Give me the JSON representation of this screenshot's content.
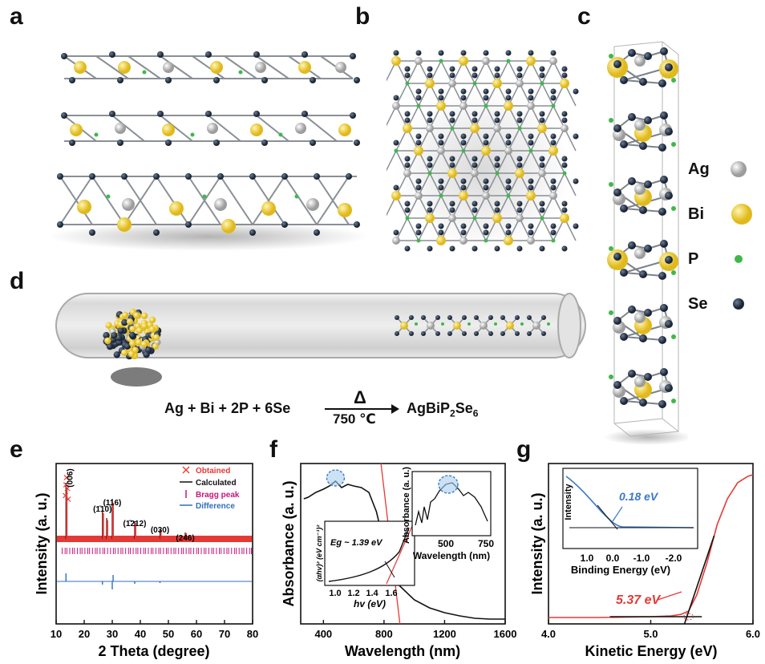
{
  "panels": {
    "a": "a",
    "b": "b",
    "c": "c",
    "d": "d",
    "e": "e",
    "f": "f",
    "g": "g"
  },
  "colors": {
    "ag": "#c9c9c9",
    "bi": "#f2d53c",
    "p": "#3fb84a",
    "se": "#263447",
    "obtained": "#e53935",
    "calculated": "#111111",
    "bragg": "#c2187a",
    "difference": "#2f6fbf",
    "red_line": "#e53935",
    "blue_accent": "#3a78c9"
  },
  "legend": {
    "items": [
      {
        "label": "Ag"
      },
      {
        "label": "Bi"
      },
      {
        "label": "P"
      },
      {
        "label": "Se"
      }
    ]
  },
  "reaction": {
    "lhs": "Ag + Bi + 2P + 6Se",
    "delta": "Δ",
    "temperature": "750 ℃",
    "product_main": "AgBiP",
    "product_sub1": "2",
    "product_mid": "Se",
    "product_sub2": "6"
  },
  "chart_data": [
    {
      "panel": "e",
      "type": "line",
      "xlabel": "2 Theta (degree)",
      "ylabel": "Intensity (a. u.)",
      "xlim": [
        10,
        80
      ],
      "xticks": [
        10,
        20,
        30,
        40,
        50,
        60,
        70,
        80
      ],
      "legend_position": "top-right",
      "series": [
        {
          "name": "Obtained",
          "style": "cross",
          "x": [
            13.3,
            13.5,
            13.7,
            14.0,
            14.3
          ],
          "y": [
            0.6,
            0.75,
            0.85,
            0.7,
            0.55
          ]
        },
        {
          "name": "Calculated",
          "style": "line"
        },
        {
          "name": "Bragg peak",
          "style": "ticks"
        },
        {
          "name": "Difference",
          "style": "line"
        }
      ],
      "peak_labels": [
        {
          "text": "(006)",
          "x": 13.5
        },
        {
          "text": "(1̄10)",
          "x": 26.5
        },
        {
          "text": "(116)",
          "x": 30.0
        },
        {
          "text": "(1̄212)",
          "x": 38.0
        },
        {
          "text": "(030)",
          "x": 47.0
        },
        {
          "text": "(246)",
          "x": 56.0
        }
      ]
    },
    {
      "panel": "f",
      "type": "line",
      "xlabel": "Wavelength (nm)",
      "ylabel": "Absorbance (a. u.)",
      "xlim": [
        250,
        1600
      ],
      "xticks": [
        400,
        800,
        1200,
        1600
      ],
      "series": [
        {
          "name": "",
          "x": [
            270,
            300,
            350,
            400,
            440,
            480,
            520,
            560,
            600,
            650,
            700,
            750,
            800,
            850,
            900,
            1000,
            1100,
            1200,
            1300,
            1400,
            1500,
            1600
          ],
          "y": [
            0.78,
            0.79,
            0.82,
            0.84,
            0.86,
            0.89,
            0.85,
            0.87,
            0.86,
            0.85,
            0.82,
            0.7,
            0.5,
            0.33,
            0.24,
            0.15,
            0.1,
            0.07,
            0.05,
            0.035,
            0.03,
            0.03
          ]
        }
      ],
      "inset_tauc": {
        "xlabel": "hv (eV)",
        "ylabel": "(αhv)² (eV cm⁻¹)²",
        "xticks": [
          "1.0",
          "1.2",
          "1.4",
          "1.6"
        ],
        "annotation": "Eg ~ 1.39 eV"
      },
      "inset_zoom": {
        "xlabel": "Wavelength (nm)",
        "ylabel": "Absorbance (a. u.)",
        "xticks": [
          "500",
          "750"
        ]
      }
    },
    {
      "panel": "g",
      "type": "line",
      "xlabel": "Kinetic Energy (eV)",
      "ylabel": "Intensity (a. u.)",
      "xlim": [
        4.0,
        6.0
      ],
      "xticks": [
        "4.0",
        "5.0",
        "6.0"
      ],
      "annotation": "5.37 eV",
      "series": [
        {
          "name": "",
          "x": [
            4.0,
            4.5,
            5.0,
            5.2,
            5.3,
            5.37,
            5.45,
            5.55,
            5.65,
            5.75,
            5.85,
            5.95,
            6.0
          ],
          "y": [
            0.04,
            0.04,
            0.045,
            0.05,
            0.06,
            0.08,
            0.18,
            0.38,
            0.62,
            0.78,
            0.88,
            0.92,
            0.93
          ]
        }
      ],
      "inset": {
        "xlabel": "Binding Energy (eV)",
        "ylabel": "Intensity",
        "xticks": [
          "1.0",
          "0.0",
          "-1.0",
          "-2.0"
        ],
        "annotation": "0.18 eV"
      }
    }
  ]
}
